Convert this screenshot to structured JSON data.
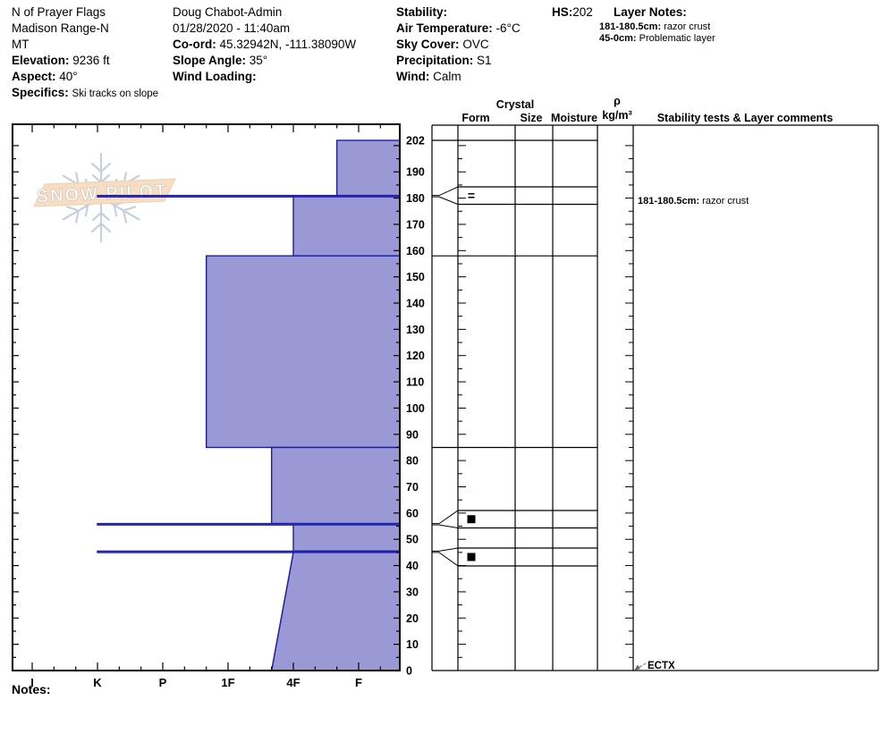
{
  "header": {
    "site": {
      "name": "N of Prayer Flags",
      "range": "Madison Range-N",
      "state": "MT",
      "elevation_label": "Elevation:",
      "elevation": "9236 ft",
      "aspect_label": "Aspect:",
      "aspect": "40°",
      "specifics_label": "Specifics:",
      "specifics": "Ski tracks on slope"
    },
    "observer": {
      "name": "Doug Chabot-Admin",
      "datetime": "01/28/2020 - 11:40am",
      "coord_label": "Co-ord:",
      "coord": "45.32942N, -111.38090W",
      "slope_angle_label": "Slope Angle:",
      "slope_angle": "35°",
      "wind_loading_label": "Wind Loading:",
      "wind_loading": ""
    },
    "weather": {
      "stability_label": "Stability:",
      "stability": "",
      "air_temp_label": "Air Temperature:",
      "air_temp": "-6°C",
      "sky_label": "Sky Cover:",
      "sky": "OVC",
      "precip_label": "Precipitation:",
      "precip": "S1",
      "wind_label": "Wind:",
      "wind": "Calm"
    },
    "hs_label": "HS:",
    "hs": "202",
    "layer_notes": {
      "title": "Layer Notes:",
      "notes": [
        {
          "range": "181-180.5cm:",
          "text": "razor crust"
        },
        {
          "range": "45-0cm:",
          "text": "Problematic layer"
        }
      ]
    }
  },
  "watermark": {
    "text": "SNOW PILOT"
  },
  "table_header": {
    "crystal": "Crystal",
    "form": "Form",
    "size": "Size",
    "moisture": "Moisture",
    "rho": "ρ",
    "rho_unit": "kg/m³",
    "stability": "Stability tests & Layer comments"
  },
  "chart_data": {
    "type": "snow-profile",
    "depth_axis": {
      "unit": "cm",
      "min": 0,
      "max": 202,
      "label_step": 10,
      "top_label": "202"
    },
    "hardness_axis": {
      "labels": [
        "I",
        "K",
        "P",
        "1F",
        "4F",
        "F"
      ]
    },
    "hs_cm": 202,
    "layers": [
      {
        "top_cm": 202,
        "bottom_cm": 181,
        "hardness": "F+"
      },
      {
        "top_cm": 181,
        "bottom_cm": 180.5,
        "hardness": "K",
        "thin": true,
        "grain_form_symbol": "=",
        "comment_label": "181-180.5cm:",
        "comment": "razor crust"
      },
      {
        "top_cm": 180.5,
        "bottom_cm": 158,
        "hardness": "4F"
      },
      {
        "top_cm": 158,
        "bottom_cm": 85,
        "hardness": "1F+"
      },
      {
        "top_cm": 85,
        "bottom_cm": 56,
        "hardness": "4F+"
      },
      {
        "top_cm": 56,
        "bottom_cm": 55.5,
        "hardness": "K",
        "thin": true,
        "grain_form_symbol": "■"
      },
      {
        "top_cm": 55.5,
        "bottom_cm": 45.5,
        "hardness": "4F"
      },
      {
        "top_cm": 45.5,
        "bottom_cm": 45,
        "hardness": "K",
        "thin": true,
        "grain_form_symbol": "■"
      },
      {
        "top_cm": 45,
        "bottom_cm": 0,
        "hardness_top": "4F",
        "hardness_bottom": "4F+"
      }
    ],
    "stability_tests": [
      {
        "label": "ECTX",
        "depth_cm": 0
      }
    ],
    "colors": {
      "layer_fill": "#9a99d6",
      "layer_border": "#1c1caa"
    }
  },
  "footer": {
    "notes_label": "Notes:"
  }
}
